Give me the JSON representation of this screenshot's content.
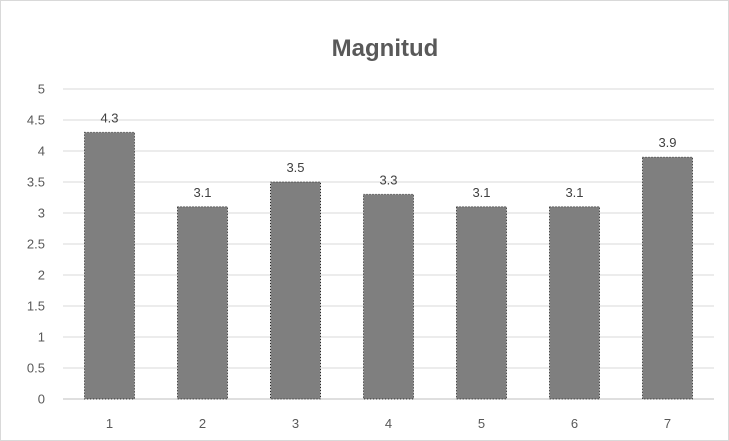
{
  "chart_data": {
    "type": "bar",
    "title": "Magnitud",
    "xlabel": "",
    "ylabel": "",
    "categories": [
      "1",
      "2",
      "3",
      "4",
      "5",
      "6",
      "7"
    ],
    "values": [
      4.3,
      3.1,
      3.5,
      3.3,
      3.1,
      3.1,
      3.9
    ],
    "data_labels": [
      "4.3",
      "3.1",
      "3.5",
      "3.3",
      "3.1",
      "3.1",
      "3.9"
    ],
    "yticks": [
      "0",
      "0.5",
      "1",
      "1.5",
      "2",
      "2.5",
      "3",
      "3.5",
      "4",
      "4.5",
      "5"
    ],
    "ylim": [
      0,
      5
    ],
    "grid": true,
    "legend": "none",
    "colors": {
      "bar": "#7f7f7f",
      "grid": "#d9d9d9",
      "text": "#595959"
    }
  }
}
